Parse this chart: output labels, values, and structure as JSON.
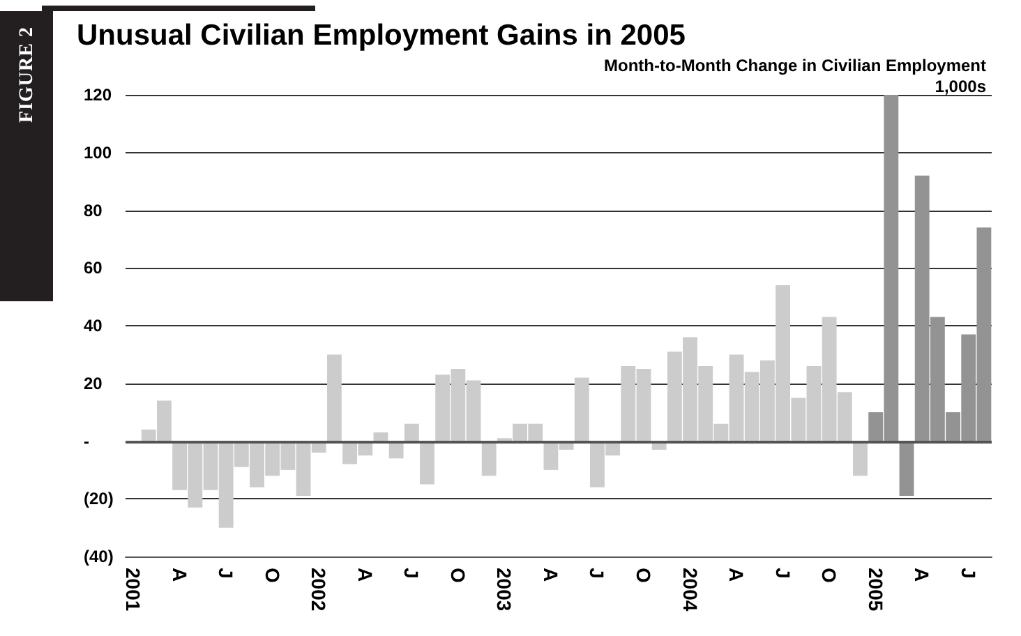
{
  "chart_data": {
    "type": "bar",
    "title": "Unusual Civilian Employment Gains in 2005",
    "subtitle": "Month-to-Month Change in Civilian Employment",
    "ylabel": "1,000s",
    "annotations": [
      "FIGURE 2"
    ],
    "categories": [
      "2001",
      null,
      null,
      "A",
      null,
      null,
      "J",
      null,
      null,
      "O",
      null,
      null,
      "2002",
      null,
      null,
      "A",
      null,
      null,
      "J",
      null,
      null,
      "O",
      null,
      null,
      "2003",
      null,
      null,
      "A",
      null,
      null,
      "J",
      null,
      null,
      "O",
      null,
      null,
      "2004",
      null,
      null,
      "A",
      null,
      null,
      "J",
      null,
      null,
      "O",
      null,
      null,
      "2005",
      null,
      null,
      "A",
      null,
      null,
      "J",
      null
    ],
    "values": [
      null,
      4,
      14,
      -17,
      -23,
      -17,
      -30,
      -9,
      -16,
      -12,
      -10,
      -19,
      -4,
      30,
      -8,
      -5,
      3,
      -6,
      6,
      -15,
      23,
      25,
      21,
      -12,
      1,
      6,
      6,
      -10,
      -3,
      22,
      -16,
      -5,
      26,
      25,
      -3,
      31,
      36,
      26,
      6,
      30,
      24,
      28,
      54,
      15,
      26,
      43,
      17,
      -12,
      10,
      120,
      -19,
      92,
      43,
      10,
      37,
      74
    ],
    "colors": [
      "#cccccc",
      "#cccccc",
      "#cccccc",
      "#cccccc",
      "#cccccc",
      "#cccccc",
      "#cccccc",
      "#cccccc",
      "#cccccc",
      "#cccccc",
      "#cccccc",
      "#cccccc",
      "#cccccc",
      "#cccccc",
      "#cccccc",
      "#cccccc",
      "#cccccc",
      "#cccccc",
      "#cccccc",
      "#cccccc",
      "#cccccc",
      "#cccccc",
      "#cccccc",
      "#cccccc",
      "#cccccc",
      "#cccccc",
      "#cccccc",
      "#cccccc",
      "#cccccc",
      "#cccccc",
      "#cccccc",
      "#cccccc",
      "#cccccc",
      "#cccccc",
      "#cccccc",
      "#cccccc",
      "#cccccc",
      "#cccccc",
      "#cccccc",
      "#cccccc",
      "#cccccc",
      "#cccccc",
      "#cccccc",
      "#cccccc",
      "#cccccc",
      "#cccccc",
      "#cccccc",
      "#cccccc",
      "#939393",
      "#939393",
      "#939393",
      "#939393",
      "#939393",
      "#939393",
      "#939393",
      "#939393"
    ],
    "ylim": [
      -40,
      120
    ],
    "yticks": [
      {
        "value": -40,
        "label": "(40)"
      },
      {
        "value": -20,
        "label": "(20)"
      },
      {
        "value": 0,
        "label": "-"
      },
      20,
      40,
      60,
      80,
      100,
      120
    ],
    "grid": "y"
  }
}
